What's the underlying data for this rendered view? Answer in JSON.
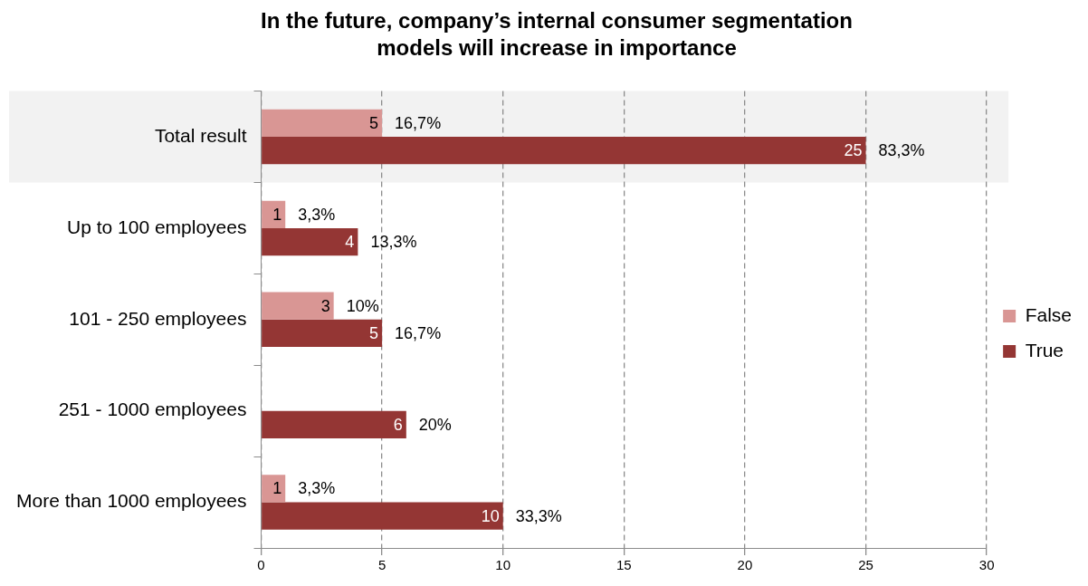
{
  "chart_data": {
    "type": "bar",
    "orientation": "horizontal",
    "title": "In the future, company’s internal consumer segmentation models will increase in importance",
    "categories": [
      "Total result",
      "Up to 100 employees",
      "101 - 250 employees",
      "251 - 1000 employees",
      "More than 1000 employees"
    ],
    "series": [
      {
        "name": "False",
        "color": "#d99694",
        "values": [
          5,
          1,
          3,
          null,
          1
        ]
      },
      {
        "name": "True",
        "color": "#943634",
        "values": [
          25,
          4,
          5,
          6,
          10
        ]
      }
    ],
    "xlim": [
      0,
      30
    ],
    "xticks": [
      0,
      5,
      10,
      15,
      20,
      25,
      30
    ],
    "grid": "x",
    "legend": "right",
    "data_labels": true,
    "bands": [
      {
        "axis": "y",
        "from": "Total result",
        "to": "Total result",
        "color": "#f2f2f2"
      }
    ],
    "annotations": [
      {
        "text": "16,7%",
        "x": 5,
        "y": "Total result"
      },
      {
        "text": "83,3%",
        "x": 25,
        "y": "Total result"
      },
      {
        "text": "3,3%",
        "x": 1,
        "y": "Up to 100 employees"
      },
      {
        "text": "13,3%",
        "x": 4,
        "y": "Up to 100 employees"
      },
      {
        "text": "10%",
        "x": 3,
        "y": "101 - 250 employees"
      },
      {
        "text": "16,7%",
        "x": 5,
        "y": "101 - 250 employees"
      },
      {
        "text": "20%",
        "x": 6,
        "y": "251 - 1000 employees"
      },
      {
        "text": "3,3%",
        "x": 1,
        "y": "More than 1000 employees"
      },
      {
        "text": "33,3%",
        "x": 10,
        "y": "More than 1000 employees"
      }
    ]
  }
}
